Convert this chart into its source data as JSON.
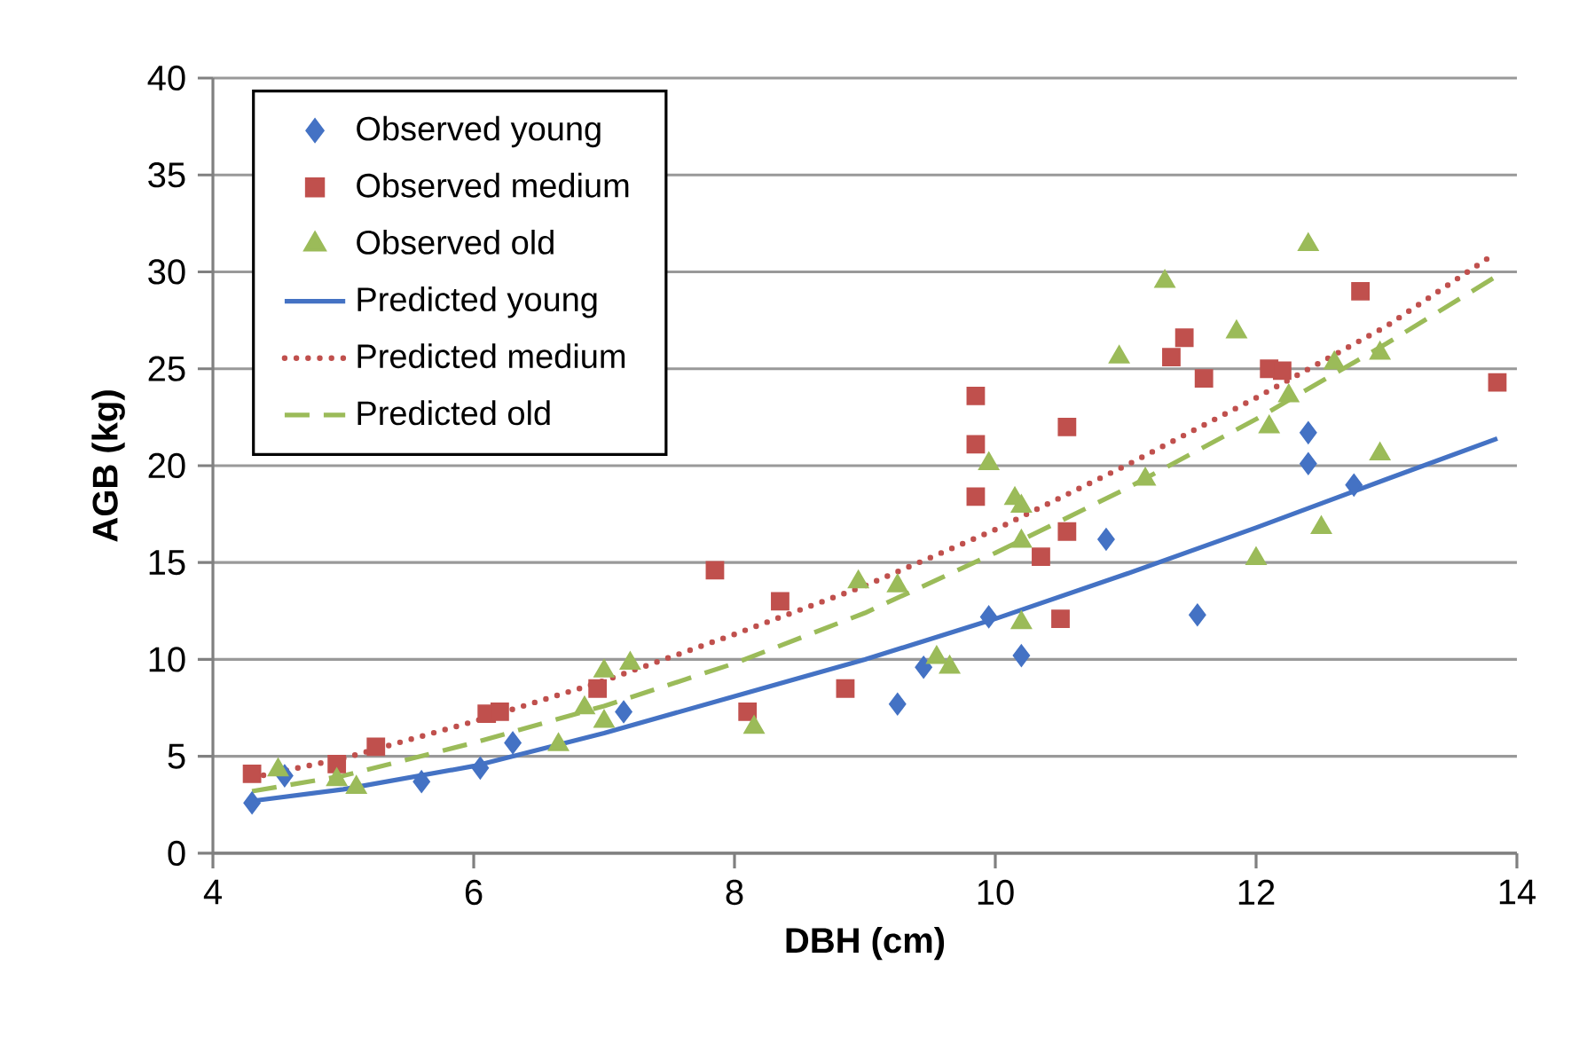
{
  "chart_data": {
    "type": "scatter",
    "xlabel": "DBH (cm)",
    "ylabel": "AGB (kg)",
    "xlim": [
      4,
      14
    ],
    "ylim": [
      0,
      40
    ],
    "xticks": [
      4,
      6,
      8,
      10,
      12,
      14
    ],
    "yticks": [
      0,
      5,
      10,
      15,
      20,
      25,
      30,
      35,
      40
    ],
    "grid": "y",
    "legend": "top left",
    "series": [
      {
        "name": "Observed young",
        "marker": "diamond",
        "color": "#4472c4",
        "x": [
          4.3,
          4.55,
          5.6,
          6.05,
          6.3,
          7.15,
          9.25,
          9.45,
          9.95,
          10.2,
          10.85,
          11.55,
          12.4,
          12.4,
          12.75
        ],
        "values": [
          2.6,
          4.0,
          3.7,
          4.4,
          5.7,
          7.3,
          7.7,
          9.6,
          12.2,
          10.2,
          16.2,
          12.3,
          21.7,
          20.1,
          19.0
        ]
      },
      {
        "name": "Observed medium",
        "marker": "square",
        "color": "#c0504d",
        "x": [
          4.3,
          4.95,
          5.25,
          6.1,
          6.2,
          6.95,
          7.85,
          8.1,
          8.35,
          8.85,
          9.85,
          9.85,
          9.85,
          10.35,
          10.5,
          10.55,
          10.55,
          11.35,
          11.45,
          11.6,
          12.1,
          12.2,
          12.8,
          13.85
        ],
        "values": [
          4.1,
          4.6,
          5.5,
          7.2,
          7.3,
          8.5,
          14.6,
          7.3,
          13.0,
          8.5,
          23.6,
          21.1,
          18.4,
          15.3,
          12.1,
          22.0,
          16.6,
          25.6,
          26.6,
          24.5,
          25.0,
          24.9,
          29.0,
          24.3
        ]
      },
      {
        "name": "Observed old",
        "marker": "triangle",
        "color": "#9bbb59",
        "x": [
          4.5,
          4.95,
          5.1,
          6.65,
          6.85,
          7.0,
          7.0,
          7.2,
          8.15,
          8.95,
          9.25,
          9.55,
          9.65,
          9.95,
          10.15,
          10.2,
          10.2,
          10.2,
          10.95,
          11.15,
          11.3,
          11.85,
          12.0,
          12.1,
          12.25,
          12.4,
          12.5,
          12.6,
          12.95,
          12.95
        ],
        "values": [
          4.3,
          3.8,
          3.4,
          5.6,
          7.5,
          6.8,
          9.4,
          9.8,
          6.5,
          14.0,
          13.8,
          10.1,
          9.6,
          20.1,
          18.3,
          17.9,
          16.1,
          11.9,
          25.6,
          19.3,
          29.5,
          26.9,
          15.2,
          22.0,
          23.6,
          31.4,
          16.8,
          25.3,
          25.8,
          20.6
        ]
      },
      {
        "name": "Predicted young",
        "type": "line",
        "line_style": "solid",
        "color": "#4472c4",
        "x": [
          4.3,
          5,
          6,
          7,
          8,
          9,
          10,
          11,
          12,
          13,
          13.85
        ],
        "values": [
          2.7,
          3.3,
          4.5,
          6.2,
          8.1,
          10.0,
          12.1,
          14.4,
          16.8,
          19.3,
          21.4
        ]
      },
      {
        "name": "Predicted medium",
        "type": "line",
        "line_style": "dotted",
        "color": "#c0504d",
        "x": [
          4.3,
          5,
          6,
          7,
          8,
          9,
          10,
          11,
          12,
          13,
          13.8
        ],
        "values": [
          3.9,
          4.9,
          6.8,
          8.9,
          11.3,
          13.8,
          16.7,
          20.0,
          23.5,
          27.2,
          30.8
        ]
      },
      {
        "name": "Predicted old",
        "type": "line",
        "line_style": "dashed",
        "color": "#9bbb59",
        "x": [
          4.3,
          5,
          6,
          7,
          8,
          9,
          10,
          11,
          12,
          13,
          13.85
        ],
        "values": [
          3.2,
          4.0,
          5.7,
          7.6,
          9.8,
          12.4,
          15.5,
          18.8,
          22.4,
          26.3,
          29.8
        ]
      }
    ]
  }
}
